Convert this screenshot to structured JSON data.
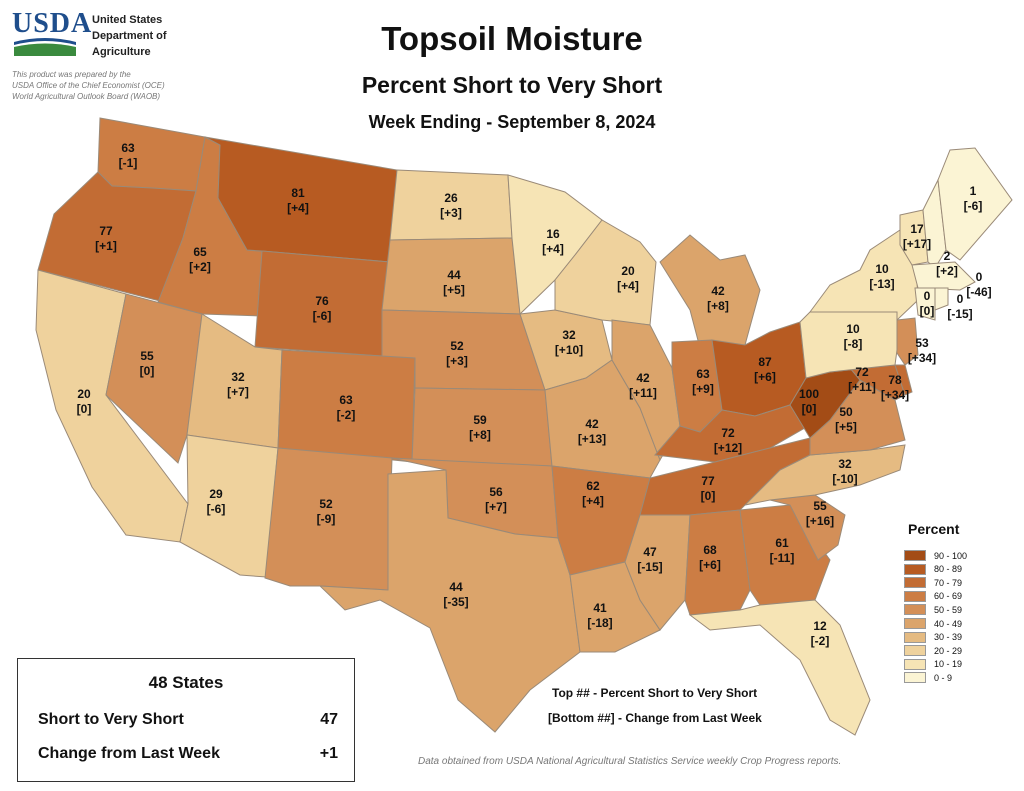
{
  "header": {
    "logo_text": "USDA",
    "agency": "United States\nDepartment of\nAgriculture",
    "prepared_note": "This product was prepared by the\nUSDA Office of the Chief Economist (OCE)\nWorld Agricultural Outlook Board (WAOB)",
    "title": "Topsoil Moisture",
    "subtitle": "Percent Short to Very Short",
    "week": "Week Ending - September 8, 2024"
  },
  "legend": {
    "title": "Percent",
    "items": [
      {
        "label": "90 - 100",
        "color": "#a34c16"
      },
      {
        "label": "80 - 89",
        "color": "#b75b22"
      },
      {
        "label": "70 - 79",
        "color": "#c26c34"
      },
      {
        "label": "60 - 69",
        "color": "#cc7d44"
      },
      {
        "label": "50 - 59",
        "color": "#d38f58"
      },
      {
        "label": "40 - 49",
        "color": "#dba46b"
      },
      {
        "label": "30 - 39",
        "color": "#e5bb82"
      },
      {
        "label": "20 - 29",
        "color": "#efd29d"
      },
      {
        "label": "10 - 19",
        "color": "#f6e4b5"
      },
      {
        "label": "0 - 9",
        "color": "#fbf4d4"
      }
    ]
  },
  "states": [
    {
      "name": "WA",
      "value": "63",
      "change": "[-1]"
    },
    {
      "name": "OR",
      "value": "77",
      "change": "[+1]"
    },
    {
      "name": "CA",
      "value": "20",
      "change": "[0]"
    },
    {
      "name": "ID",
      "value": "65",
      "change": "[+2]"
    },
    {
      "name": "NV",
      "value": "55",
      "change": "[0]"
    },
    {
      "name": "MT",
      "value": "81",
      "change": "[+4]"
    },
    {
      "name": "WY",
      "value": "76",
      "change": "[-6]"
    },
    {
      "name": "UT",
      "value": "32",
      "change": "[+7]"
    },
    {
      "name": "AZ",
      "value": "29",
      "change": "[-6]"
    },
    {
      "name": "CO",
      "value": "63",
      "change": "[-2]"
    },
    {
      "name": "NM",
      "value": "52",
      "change": "[-9]"
    },
    {
      "name": "ND",
      "value": "26",
      "change": "[+3]"
    },
    {
      "name": "SD",
      "value": "44",
      "change": "[+5]"
    },
    {
      "name": "NE",
      "value": "52",
      "change": "[+3]"
    },
    {
      "name": "KS",
      "value": "59",
      "change": "[+8]"
    },
    {
      "name": "OK",
      "value": "56",
      "change": "[+7]"
    },
    {
      "name": "TX",
      "value": "44",
      "change": "[-35]"
    },
    {
      "name": "MN",
      "value": "16",
      "change": "[+4]"
    },
    {
      "name": "IA",
      "value": "32",
      "change": "[+10]"
    },
    {
      "name": "MO",
      "value": "42",
      "change": "[+13]"
    },
    {
      "name": "AR",
      "value": "62",
      "change": "[+4]"
    },
    {
      "name": "LA",
      "value": "41",
      "change": "[-18]"
    },
    {
      "name": "WI",
      "value": "20",
      "change": "[+4]"
    },
    {
      "name": "IL",
      "value": "42",
      "change": "[+11]"
    },
    {
      "name": "MI",
      "value": "42",
      "change": "[+8]"
    },
    {
      "name": "IN",
      "value": "63",
      "change": "[+9]"
    },
    {
      "name": "OH",
      "value": "87",
      "change": "[+6]"
    },
    {
      "name": "KY",
      "value": "72",
      "change": "[+12]"
    },
    {
      "name": "TN",
      "value": "77",
      "change": "[0]"
    },
    {
      "name": "MS",
      "value": "47",
      "change": "[-15]"
    },
    {
      "name": "AL",
      "value": "68",
      "change": "[+6]"
    },
    {
      "name": "GA",
      "value": "61",
      "change": "[-11]"
    },
    {
      "name": "FL",
      "value": "12",
      "change": "[-2]"
    },
    {
      "name": "SC",
      "value": "55",
      "change": "[+16]"
    },
    {
      "name": "NC",
      "value": "32",
      "change": "[-10]"
    },
    {
      "name": "VA",
      "value": "50",
      "change": "[+5]"
    },
    {
      "name": "WV",
      "value": "100",
      "change": "[0]"
    },
    {
      "name": "MD",
      "value": "72",
      "change": "[+11]"
    },
    {
      "name": "DE",
      "value": "78",
      "change": "[+34]"
    },
    {
      "name": "NJ",
      "value": "53",
      "change": "[+34]"
    },
    {
      "name": "PA",
      "value": "10",
      "change": "[-8]"
    },
    {
      "name": "NY",
      "value": "10",
      "change": "[-13]"
    },
    {
      "name": "VT",
      "value": "17",
      "change": "[+17]"
    },
    {
      "name": "NH",
      "value": "2",
      "change": "[+2]"
    },
    {
      "name": "ME",
      "value": "1",
      "change": "[-6]"
    },
    {
      "name": "MA",
      "value": "0",
      "change": "[-46]"
    },
    {
      "name": "CT",
      "value": "0",
      "change": "[0]"
    },
    {
      "name": "RI",
      "value": "0",
      "change": "[-15]"
    }
  ],
  "summary": {
    "title": "48 States",
    "short_label": "Short to Very Short",
    "short_value": "47",
    "change_label": "Change from Last Week",
    "change_value": "+1"
  },
  "key": {
    "top": "Top ## - Percent Short to Very Short",
    "bottom": "[Bottom ##] - Change from Last Week"
  },
  "source": "Data obtained from USDA National Agricultural Statistics Service weekly Crop Progress reports."
}
